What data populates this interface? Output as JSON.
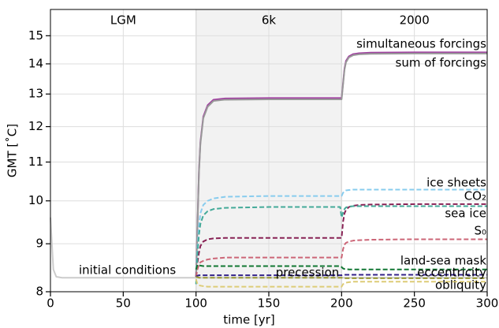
{
  "chart_data": {
    "type": "line",
    "xlabel": "time [yr]",
    "ylabel": "GMT [˚C]",
    "xlim": [
      0,
      300
    ],
    "xticks": [
      0,
      50,
      100,
      150,
      200,
      250,
      300
    ],
    "ylim": [
      8,
      16
    ],
    "yticks": [
      8,
      9,
      10,
      11,
      12,
      13,
      14,
      15
    ],
    "log_y": true,
    "grid": true,
    "periods": [
      {
        "name": "LGM",
        "span": [
          0,
          100
        ],
        "shaded": false
      },
      {
        "name": "6k",
        "span": [
          100,
          200
        ],
        "shaded": true
      },
      {
        "name": "2000",
        "span": [
          200,
          300
        ],
        "shaded": false
      }
    ],
    "x": [
      0,
      2,
      4,
      8,
      20,
      50,
      99,
      100,
      101,
      102,
      103,
      105,
      108,
      112,
      120,
      150,
      199,
      200,
      201,
      202,
      203,
      205,
      208,
      212,
      220,
      250,
      300
    ],
    "series": [
      {
        "name": "initial conditions",
        "color": "#cccccc",
        "dashed": false,
        "values": [
          9.6,
          8.45,
          8.3,
          8.28,
          8.28,
          8.28,
          8.28,
          8.28,
          8.28,
          8.28,
          8.28,
          8.28,
          8.28,
          8.28,
          8.28,
          8.28,
          8.28,
          8.28,
          8.28,
          8.28,
          8.28,
          8.28,
          8.28,
          8.28,
          8.28,
          8.28,
          8.28
        ]
      },
      {
        "name": "sum of forcings",
        "color": "#a040a0",
        "dashed": false,
        "values": [
          null,
          null,
          null,
          null,
          null,
          null,
          null,
          8.3,
          9.45,
          10.75,
          11.55,
          12.3,
          12.65,
          12.82,
          12.86,
          12.87,
          12.87,
          12.87,
          13.35,
          13.85,
          14.1,
          14.26,
          14.34,
          14.37,
          14.39,
          14.4,
          14.4
        ]
      },
      {
        "name": "simultaneous forcings",
        "color": "#999999",
        "dashed": false,
        "values": [
          null,
          null,
          null,
          null,
          null,
          null,
          null,
          8.3,
          9.4,
          10.7,
          11.5,
          12.25,
          12.6,
          12.78,
          12.82,
          12.83,
          12.83,
          12.83,
          13.3,
          13.8,
          14.05,
          14.22,
          14.3,
          14.33,
          14.35,
          14.36,
          14.36
        ]
      },
      {
        "name": "ice sheets",
        "color": "#88ccee",
        "dashed": true,
        "values": [
          null,
          null,
          null,
          null,
          null,
          null,
          null,
          8.3,
          8.9,
          9.4,
          9.7,
          9.9,
          10.0,
          10.06,
          10.1,
          10.12,
          10.12,
          10.12,
          10.2,
          10.24,
          10.26,
          10.27,
          10.28,
          10.28,
          10.28,
          10.28,
          10.28
        ]
      },
      {
        "name": "CO₂",
        "color": "#882255",
        "dashed": true,
        "values": [
          null,
          null,
          null,
          null,
          null,
          null,
          null,
          8.3,
          8.6,
          8.8,
          8.95,
          9.05,
          9.1,
          9.12,
          9.13,
          9.13,
          9.13,
          9.13,
          9.5,
          9.7,
          9.78,
          9.85,
          9.88,
          9.9,
          9.91,
          9.92,
          9.92
        ]
      },
      {
        "name": "sea ice",
        "color": "#44aa99",
        "dashed": true,
        "values": [
          null,
          null,
          null,
          null,
          null,
          null,
          null,
          8.15,
          8.8,
          9.2,
          9.45,
          9.65,
          9.75,
          9.8,
          9.83,
          9.85,
          9.85,
          9.6,
          9.72,
          9.8,
          9.84,
          9.86,
          9.87,
          9.87,
          9.87,
          9.87,
          9.87
        ]
      },
      {
        "name": "S₀",
        "color": "#cc6677",
        "dashed": true,
        "values": [
          null,
          null,
          null,
          null,
          null,
          null,
          null,
          8.3,
          8.45,
          8.55,
          8.6,
          8.63,
          8.66,
          8.68,
          8.7,
          8.7,
          8.7,
          8.7,
          8.88,
          8.98,
          9.02,
          9.05,
          9.07,
          9.08,
          9.09,
          9.1,
          9.1
        ]
      },
      {
        "name": "land-sea mask",
        "color": "#117733",
        "dashed": true,
        "values": [
          null,
          null,
          null,
          null,
          null,
          null,
          null,
          8.45,
          8.55,
          8.54,
          8.53,
          8.52,
          8.52,
          8.52,
          8.52,
          8.52,
          8.52,
          8.5,
          8.47,
          8.46,
          8.46,
          8.45,
          8.45,
          8.45,
          8.45,
          8.45,
          8.45
        ]
      },
      {
        "name": "eccentricity",
        "color": "#332288",
        "dashed": true,
        "values": [
          null,
          null,
          null,
          null,
          null,
          null,
          null,
          8.3,
          8.32,
          8.33,
          8.33,
          8.33,
          8.33,
          8.33,
          8.33,
          8.33,
          8.33,
          8.33,
          8.34,
          8.34,
          8.34,
          8.34,
          8.34,
          8.34,
          8.34,
          8.34,
          8.34
        ]
      },
      {
        "name": "obliquity",
        "color": "#ddcc77",
        "dashed": true,
        "values": [
          null,
          null,
          null,
          null,
          null,
          null,
          null,
          8.25,
          8.15,
          8.13,
          8.12,
          8.11,
          8.1,
          8.1,
          8.1,
          8.1,
          8.1,
          8.1,
          8.15,
          8.17,
          8.18,
          8.19,
          8.2,
          8.2,
          8.2,
          8.2,
          8.2
        ]
      },
      {
        "name": "precession",
        "color": "#999933",
        "dashed": true,
        "values": [
          null,
          null,
          null,
          null,
          null,
          null,
          null,
          8.3,
          8.29,
          8.28,
          8.28,
          8.28,
          8.28,
          8.28,
          8.28,
          8.28,
          8.28,
          8.28,
          8.27,
          8.27,
          8.27,
          8.27,
          8.27,
          8.27,
          8.27,
          8.27,
          8.27
        ]
      }
    ]
  }
}
